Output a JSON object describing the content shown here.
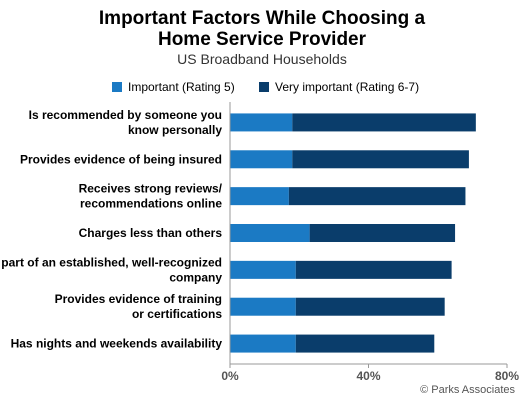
{
  "chart_data": {
    "type": "bar",
    "orientation": "horizontal",
    "stacked": true,
    "title_lines": [
      "Important Factors While Choosing a",
      "Home Service Provider"
    ],
    "subtitle": "US Broadband Households",
    "categories": [
      [
        "Is recommended by someone you",
        "know personally"
      ],
      [
        "Provides evidence of being insured"
      ],
      [
        "Receives strong reviews/",
        "recommendations online"
      ],
      [
        "Charges less than others"
      ],
      [
        "Is part of an established, well-recognized",
        "company"
      ],
      [
        "Provides evidence of training",
        "or certifications"
      ],
      [
        "Has nights and weekends availability"
      ]
    ],
    "series": [
      {
        "name": "Important (Rating 5)",
        "color": "#1b7ac4",
        "values": [
          18,
          18,
          17,
          23,
          19,
          19,
          19
        ]
      },
      {
        "name": "Very important (Rating 6-7)",
        "color": "#0a3d6b",
        "values": [
          53,
          51,
          51,
          42,
          45,
          43,
          40
        ]
      }
    ],
    "xlim": [
      0,
      80
    ],
    "xticks": [
      0,
      40,
      80
    ],
    "xtick_labels": [
      "0%",
      "40%",
      "80%"
    ],
    "grid": false,
    "legend_position": "top",
    "source": "© Parks Associates"
  }
}
